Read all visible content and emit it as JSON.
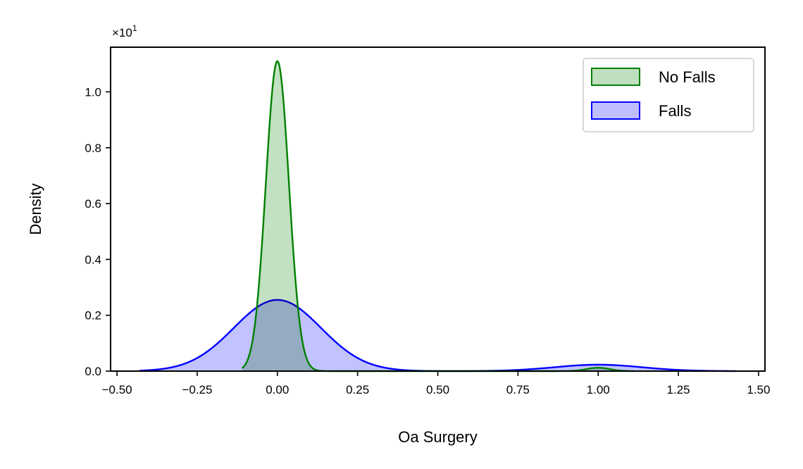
{
  "chart_data": {
    "type": "area",
    "xlabel": "Oa Surgery",
    "ylabel": "Density",
    "y_offset_label": "×10",
    "y_offset_exponent": "1",
    "xlim": [
      -0.52,
      1.52
    ],
    "ylim": [
      0,
      1.16
    ],
    "x_ticks": [
      -0.5,
      -0.25,
      0.0,
      0.25,
      0.5,
      0.75,
      1.0,
      1.25,
      1.5
    ],
    "x_tick_labels": [
      "−0.50",
      "−0.25",
      "0.00",
      "0.25",
      "0.50",
      "0.75",
      "1.00",
      "1.25",
      "1.50"
    ],
    "y_ticks": [
      0.0,
      0.2,
      0.4,
      0.6,
      0.8,
      1.0
    ],
    "y_tick_labels": [
      "0.0",
      "0.2",
      "0.4",
      "0.6",
      "0.8",
      "1.0"
    ],
    "grid": false,
    "legend_position": "top-right",
    "series": [
      {
        "name": "No Falls",
        "color": "#008000",
        "fill": "#bfdfbf",
        "x_range": [
          -0.11,
          1.11
        ],
        "components": [
          {
            "center": 0.0,
            "sigma": 0.036,
            "peak": 1.11
          },
          {
            "center": 1.0,
            "sigma": 0.036,
            "peak": 0.012
          }
        ]
      },
      {
        "name": "Falls",
        "color": "#0000ff",
        "fill": "#bfbfff",
        "x_range": [
          -0.43,
          1.43
        ],
        "components": [
          {
            "center": 0.0,
            "sigma": 0.136,
            "peak": 0.255
          },
          {
            "center": 1.0,
            "sigma": 0.136,
            "peak": 0.023
          }
        ]
      }
    ]
  }
}
